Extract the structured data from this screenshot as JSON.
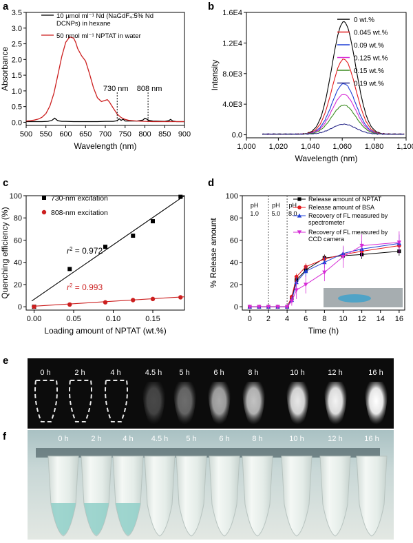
{
  "panels": {
    "a": {
      "label": "a",
      "chart_data": {
        "type": "line",
        "xlabel": "Wavelength (nm)",
        "ylabel": "Absorbance",
        "xlim": [
          500,
          900
        ],
        "ylim": [
          -0.1,
          3.5
        ],
        "xticks": [
          500,
          550,
          600,
          650,
          700,
          750,
          800,
          850,
          900
        ],
        "yticks": [
          0.0,
          0.5,
          1.0,
          1.5,
          2.0,
          2.5,
          3.0,
          3.5
        ],
        "legend": [
          "10 µmol ml⁻¹ Nd (NaGdF₄:5% Nd",
          "DCNPs) in hexane",
          "50 nmol ml⁻¹ NPTAT in water"
        ],
        "annotations": [
          "730 nm",
          "808 nm"
        ],
        "series": [
          {
            "name": "10 µmol ml⁻¹ Nd (NaGdF₄:5% Nd DCNPs) in hexane",
            "color": "#000000",
            "x": [
              500,
              520,
              540,
              555,
              565,
              572,
              580,
              590,
              600,
              620,
              650,
              680,
              700,
              720,
              730,
              735,
              740,
              745,
              750,
              780,
              795,
              800,
              805,
              810,
              820,
              850,
              860,
              865,
              870,
              880,
              890,
              900
            ],
            "y": [
              0.02,
              0.02,
              0.02,
              0.03,
              0.06,
              0.13,
              0.05,
              0.03,
              0.03,
              0.02,
              0.02,
              0.02,
              0.03,
              0.03,
              0.05,
              0.11,
              0.06,
              0.1,
              0.04,
              0.04,
              0.07,
              0.13,
              0.1,
              0.06,
              0.04,
              0.03,
              0.05,
              0.09,
              0.04,
              0.02,
              0.02,
              0.02
            ]
          },
          {
            "name": "50 nmol ml⁻¹ NPTAT in water",
            "color": "#cc1f1f",
            "x": [
              500,
              510,
              520,
              530,
              540,
              550,
              560,
              570,
              580,
              590,
              600,
              610,
              620,
              625,
              630,
              640,
              650,
              660,
              670,
              680,
              690,
              700,
              705,
              710,
              720,
              730,
              740,
              750,
              760,
              780,
              800,
              820,
              850,
              900
            ],
            "y": [
              0.04,
              0.05,
              0.07,
              0.1,
              0.16,
              0.28,
              0.52,
              0.92,
              1.5,
              2.1,
              2.55,
              2.72,
              2.68,
              2.55,
              2.35,
              2.12,
              1.95,
              1.55,
              1.1,
              0.78,
              0.66,
              0.7,
              0.72,
              0.65,
              0.45,
              0.26,
              0.15,
              0.09,
              0.06,
              0.04,
              0.03,
              0.02,
              0.02,
              0.02
            ]
          }
        ]
      }
    },
    "b": {
      "label": "b",
      "chart_data": {
        "type": "line",
        "xlabel": "Wavelength (nm)",
        "ylabel": "Intensity",
        "xlim": [
          1000,
          1100
        ],
        "ylim": [
          -400,
          16000
        ],
        "xticks": [
          1000,
          1020,
          1040,
          1060,
          1080,
          1100
        ],
        "xticklabels": [
          "1,000",
          "1,020",
          "1,040",
          "1,060",
          "1,080",
          "1,100"
        ],
        "yticks": [
          0,
          4000,
          8000,
          12000,
          16000
        ],
        "yticklabels": [
          "0.0",
          "4.0E3",
          "8.0E3",
          "1.2E4",
          "1.6E4"
        ],
        "series": [
          {
            "name": "0 wt.%",
            "color": "#000000",
            "peak": 14700
          },
          {
            "name": "0.045 wt.%",
            "color": "#e31a1c",
            "peak": 9800
          },
          {
            "name": "0.09 wt.%",
            "color": "#1f3fd6",
            "peak": 6600
          },
          {
            "name": "0.125 wt.%",
            "color": "#d62ad6",
            "peak": 5200
          },
          {
            "name": "0.15 wt.%",
            "color": "#3a8a1f",
            "peak": 3800
          },
          {
            "name": "0.19 wt.%",
            "color": "#2a2a8a",
            "peak": 1300
          }
        ]
      }
    },
    "c": {
      "label": "c",
      "chart_data": {
        "type": "scatter",
        "xlabel": "Loading amount of NPTAT (wt.%)",
        "ylabel": "Quenching efficiency (%)",
        "xlim": [
          -0.01,
          0.19
        ],
        "ylim": [
          -3,
          100
        ],
        "xticks": [
          0.0,
          0.05,
          0.1,
          0.15
        ],
        "xticklabels": [
          "0.00",
          "0.05",
          "0.10",
          "0.15"
        ],
        "yticks": [
          0,
          20,
          40,
          60,
          80,
          100
        ],
        "series": [
          {
            "name": "730-nm excitation",
            "color": "#000000",
            "marker": "square",
            "x": [
              0,
              0.045,
              0.09,
              0.125,
              0.15,
              0.185
            ],
            "y": [
              0,
              34,
              54,
              64,
              77,
              99
            ],
            "fit": {
              "x": [
                -0.003,
                0.19
              ],
              "y": [
                5.2,
                100
              ]
            },
            "r2_label": "r",
            "r2_value": "= 0.972"
          },
          {
            "name": "808-nm excitation",
            "color": "#cc1f1f",
            "marker": "circle",
            "x": [
              0,
              0.045,
              0.09,
              0.125,
              0.15,
              0.185
            ],
            "y": [
              0,
              2,
              4,
              6,
              7,
              8.5
            ],
            "fit": {
              "x": [
                -0.003,
                0.19
              ],
              "y": [
                0.4,
                9
              ]
            },
            "r2_label": "r",
            "r2_value": "= 0.993"
          }
        ]
      }
    },
    "d": {
      "label": "d",
      "chart_data": {
        "type": "line",
        "xlabel": "Time (h)",
        "ylabel": "% Release amount",
        "xlim": [
          -0.8,
          16.6
        ],
        "ylim": [
          -3,
          100
        ],
        "xticks": [
          0,
          2,
          4,
          6,
          8,
          10,
          12,
          14,
          16
        ],
        "yticks": [
          0,
          20,
          40,
          60,
          80,
          100
        ],
        "ph_labels": [
          [
            "pH",
            "1.0"
          ],
          [
            "pH",
            "5.0"
          ],
          [
            "pH",
            "8.0"
          ]
        ],
        "ph_lines": [
          2,
          4
        ],
        "legend": [
          "Release amount of NPTAT",
          "Release amount of BSA",
          "Recovery of FL measured by",
          "spectrometer",
          "Recovery of FL measured by",
          "CCD camera"
        ],
        "series": [
          {
            "name": "Release amount of NPTAT",
            "color": "#000000",
            "marker": "square",
            "x": [
              0,
              1,
              2,
              3,
              4,
              4.5,
              5,
              6,
              8,
              10,
              12,
              16
            ],
            "y": [
              0,
              0,
              0,
              0,
              0,
              8,
              24,
              33,
              44,
              46,
              47,
              50
            ],
            "err": [
              0,
              0,
              0,
              0,
              0,
              2,
              3,
              3,
              3,
              4,
              4,
              4
            ]
          },
          {
            "name": "Release amount of BSA",
            "color": "#e31a1c",
            "marker": "circle",
            "x": [
              0,
              1,
              2,
              3,
              4,
              4.5,
              5,
              6,
              8,
              10,
              12,
              16
            ],
            "y": [
              0,
              0,
              0,
              0,
              0,
              9,
              27,
              36,
              43,
              47,
              50,
              55
            ],
            "err": [
              0,
              0,
              0,
              0,
              0,
              2,
              3,
              3,
              3,
              4,
              5,
              5
            ]
          },
          {
            "name": "Recovery of FL measured by spectrometer",
            "color": "#1f3fd6",
            "marker": "triangle",
            "x": [
              0,
              1,
              2,
              3,
              4,
              4.5,
              5,
              6,
              8,
              10,
              12,
              16
            ],
            "y": [
              0,
              0,
              0,
              0,
              0,
              6,
              22,
              32,
              40,
              48,
              52,
              57
            ],
            "err": [
              0,
              0,
              0,
              0,
              0,
              3,
              5,
              5,
              5,
              6,
              7,
              8
            ]
          },
          {
            "name": "Recovery of FL measured by CCD camera",
            "color": "#d62ad6",
            "marker": "triangle-down",
            "x": [
              0,
              1,
              2,
              3,
              4,
              4.5,
              5,
              6,
              8,
              10,
              12,
              16
            ],
            "y": [
              0,
              0,
              0,
              0,
              0,
              5,
              15,
              20,
              31,
              45,
              55,
              58
            ],
            "err": [
              0,
              0,
              0,
              0,
              0,
              4,
              8,
              8,
              8,
              10,
              10,
              10
            ]
          }
        ]
      }
    },
    "e": {
      "label": "e",
      "times": [
        "0 h",
        "2 h",
        "4 h",
        "4.5 h",
        "5 h",
        "6 h",
        "8 h",
        "10 h",
        "12 h",
        "16 h"
      ]
    },
    "f": {
      "label": "f",
      "times": [
        "0 h",
        "2 h",
        "4 h",
        "4.5 h",
        "5 h",
        "6 h",
        "8 h",
        "10 h",
        "12 h",
        "16 h"
      ]
    }
  }
}
